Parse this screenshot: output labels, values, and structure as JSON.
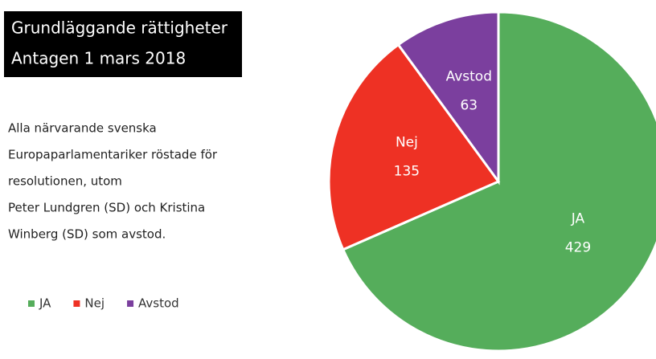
{
  "chart_data": {
    "type": "pie",
    "title": "Grundläggande rättigheter",
    "subtitle": "Antagen 1 mars 2018",
    "annotation": [
      "Alla närvarande svenska",
      "Europaparlamentariker röstade för",
      "resolutionen, utom",
      "Peter Lundgren (SD) och Kristina",
      "Winberg (SD) som avstod."
    ],
    "categories": [
      "JA",
      "Nej",
      "Avstod"
    ],
    "values": [
      429,
      135,
      63
    ],
    "colors": [
      "#55ad5b",
      "#ee3124",
      "#7b3f9e"
    ],
    "legend": "bottom-left"
  }
}
